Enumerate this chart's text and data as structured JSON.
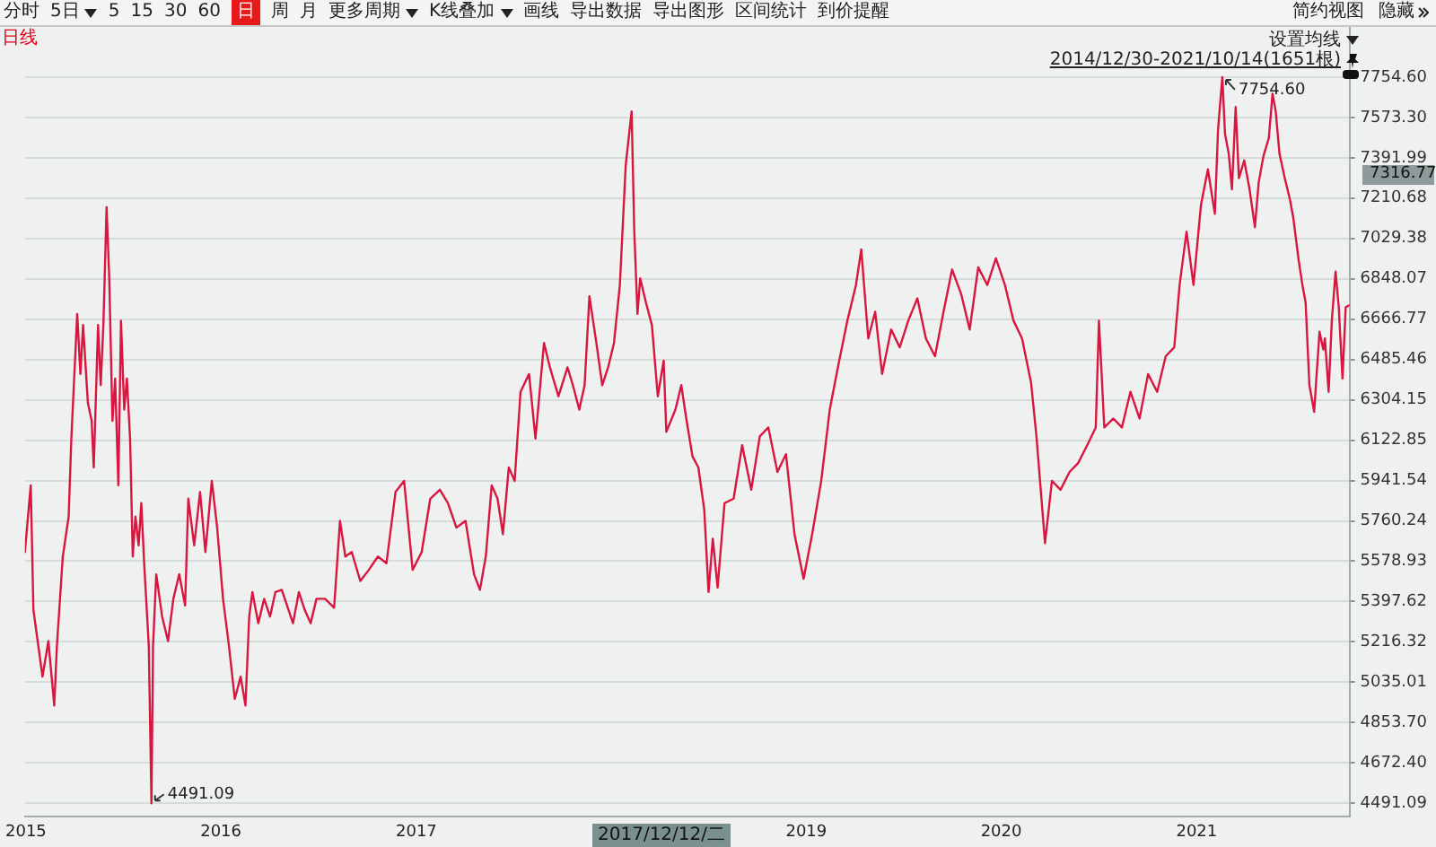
{
  "chart_data": {
    "type": "line",
    "title": "日线",
    "subtitle": "2014/12/30-2021/10/14(1651根)",
    "x": [
      "2014-12-30",
      "2015-01-10",
      "2015-01-15",
      "2015-02-01",
      "2015-02-12",
      "2015-02-23",
      "2015-02-28",
      "2015-03-11",
      "2015-03-22",
      "2015-03-27",
      "2015-04-07",
      "2015-04-13",
      "2015-04-18",
      "2015-04-27",
      "2015-05-04",
      "2015-05-08",
      "2015-05-16",
      "2015-05-21",
      "2015-05-26",
      "2015-06-01",
      "2015-06-06",
      "2015-06-12",
      "2015-06-17",
      "2015-06-23",
      "2015-06-28",
      "2015-07-04",
      "2015-07-09",
      "2015-07-15",
      "2015-07-20",
      "2015-07-25",
      "2015-07-31",
      "2015-08-05",
      "2015-08-11",
      "2015-08-19",
      "2015-08-24",
      "2015-08-27",
      "2015-09-02",
      "2015-09-13",
      "2015-09-24",
      "2015-10-04",
      "2015-10-15",
      "2015-10-26",
      "2015-11-01",
      "2015-11-12",
      "2015-11-23",
      "2015-12-03",
      "2015-12-15",
      "2015-12-25",
      "2016-01-05",
      "2016-01-16",
      "2016-01-27",
      "2016-02-07",
      "2016-02-16",
      "2016-02-23",
      "2016-02-29",
      "2016-03-11",
      "2016-03-22",
      "2016-04-02",
      "2016-04-12",
      "2016-04-24",
      "2016-05-15",
      "2016-05-26",
      "2016-06-06",
      "2016-06-17",
      "2016-06-28",
      "2016-07-14",
      "2016-07-31",
      "2016-08-11",
      "2016-08-21",
      "2016-09-02",
      "2016-09-18",
      "2016-10-04",
      "2016-10-21",
      "2016-11-06",
      "2016-11-23",
      "2016-12-09",
      "2016-12-25",
      "2017-01-11",
      "2017-01-27",
      "2017-02-14",
      "2017-03-01",
      "2017-03-17",
      "2017-04-03",
      "2017-04-19",
      "2017-04-30",
      "2017-05-11",
      "2017-05-22",
      "2017-06-02",
      "2017-06-12",
      "2017-06-23",
      "2017-07-04",
      "2017-07-15",
      "2017-07-31",
      "2017-08-12",
      "2017-08-28",
      "2017-09-08",
      "2017-09-24",
      "2017-10-11",
      "2017-10-21",
      "2017-11-02",
      "2017-11-12",
      "2017-11-21",
      "2017-12-04",
      "2017-12-15",
      "2017-12-26",
      "2018-01-06",
      "2018-01-17",
      "2018-01-28",
      "2018-02-08",
      "2018-02-13",
      "2018-02-19",
      "2018-02-24",
      "2018-03-07",
      "2018-03-18",
      "2018-03-29",
      "2018-04-09",
      "2018-04-14",
      "2018-05-01",
      "2018-05-12",
      "2018-05-22",
      "2018-06-02",
      "2018-06-13",
      "2018-06-24",
      "2018-07-02",
      "2018-07-10",
      "2018-07-19",
      "2018-08-01",
      "2018-08-18",
      "2018-09-03",
      "2018-09-20",
      "2018-10-06",
      "2018-10-22",
      "2018-11-08",
      "2018-11-24",
      "2018-12-10",
      "2018-12-27",
      "2019-01-12",
      "2019-01-29",
      "2019-02-14",
      "2019-03-02",
      "2019-03-19",
      "2019-04-04",
      "2019-04-14",
      "2019-04-27",
      "2019-05-10",
      "2019-05-23",
      "2019-06-09",
      "2019-06-25",
      "2019-07-11",
      "2019-07-28",
      "2019-08-13",
      "2019-08-30",
      "2019-09-15",
      "2019-10-01",
      "2019-10-18",
      "2019-11-03",
      "2019-11-19",
      "2019-12-06",
      "2019-12-22",
      "2020-01-08",
      "2020-01-24",
      "2020-02-09",
      "2020-02-26",
      "2020-03-07",
      "2020-03-23",
      "2020-04-05",
      "2020-04-21",
      "2020-05-08",
      "2020-05-24",
      "2020-06-10",
      "2020-06-26",
      "2020-07-02",
      "2020-07-12",
      "2020-07-29",
      "2020-08-14",
      "2020-08-30",
      "2020-09-16",
      "2020-10-02",
      "2020-10-19",
      "2020-11-04",
      "2020-11-20",
      "2020-11-30",
      "2020-12-13",
      "2020-12-26",
      "2021-01-09",
      "2021-01-22",
      "2021-02-04",
      "2021-02-10",
      "2021-02-18",
      "2021-02-23",
      "2021-03-02",
      "2021-03-08",
      "2021-03-15",
      "2021-03-21",
      "2021-03-31",
      "2021-04-10",
      "2021-04-20",
      "2021-04-27",
      "2021-05-06",
      "2021-05-16",
      "2021-05-23",
      "2021-05-29",
      "2021-06-05",
      "2021-06-15",
      "2021-06-25",
      "2021-07-01",
      "2021-07-11",
      "2021-07-18",
      "2021-07-24",
      "2021-07-27",
      "2021-07-31",
      "2021-08-09",
      "2021-08-13",
      "2021-08-19",
      "2021-08-26",
      "2021-08-29",
      "2021-09-05",
      "2021-09-11",
      "2021-09-18",
      "2021-09-24",
      "2021-10-01",
      "2021-10-07",
      "2021-10-14"
    ],
    "values": [
      5620,
      5920,
      5360,
      5060,
      5220,
      4930,
      5200,
      5600,
      5780,
      6130,
      6690,
      6420,
      6640,
      6290,
      6210,
      6000,
      6640,
      6370,
      6640,
      7170,
      6850,
      6210,
      6400,
      5920,
      6660,
      6260,
      6400,
      6130,
      5600,
      5780,
      5650,
      5840,
      5540,
      5200,
      4491.09,
      5200,
      5520,
      5330,
      5220,
      5410,
      5520,
      5380,
      5860,
      5650,
      5890,
      5620,
      5940,
      5730,
      5410,
      5200,
      4960,
      5060,
      4930,
      5330,
      5440,
      5300,
      5410,
      5330,
      5440,
      5450,
      5300,
      5440,
      5360,
      5300,
      5410,
      5410,
      5370,
      5760,
      5600,
      5620,
      5490,
      5540,
      5600,
      5570,
      5890,
      5940,
      5540,
      5620,
      5860,
      5900,
      5840,
      5730,
      5760,
      5520,
      5450,
      5600,
      5920,
      5860,
      5700,
      6000,
      5940,
      6340,
      6420,
      6130,
      6560,
      6450,
      6320,
      6450,
      6370,
      6260,
      6370,
      6770,
      6560,
      6370,
      6450,
      6560,
      6820,
      7360,
      7600,
      7060,
      6690,
      6850,
      6740,
      6640,
      6320,
      6480,
      6160,
      6260,
      6370,
      6210,
      6050,
      6000,
      5810,
      5440,
      5680,
      5460,
      5840,
      5860,
      6100,
      5900,
      6140,
      6180,
      5980,
      6060,
      5700,
      5500,
      5700,
      5940,
      6260,
      6460,
      6660,
      6820,
      6980,
      6580,
      6700,
      6420,
      6620,
      6540,
      6660,
      6760,
      6580,
      6500,
      6700,
      6890,
      6780,
      6620,
      6900,
      6820,
      6940,
      6820,
      6660,
      6580,
      6380,
      6140,
      5660,
      5940,
      5900,
      5980,
      6020,
      6100,
      6180,
      6660,
      6180,
      6220,
      6180,
      6340,
      6220,
      6420,
      6340,
      6500,
      6540,
      6820,
      7060,
      6820,
      7180,
      7340,
      7140,
      7520,
      7754.6,
      7500,
      7410,
      7250,
      7620,
      7300,
      7380,
      7250,
      7080,
      7280,
      7400,
      7480,
      7680,
      7600,
      7410,
      7300,
      7200,
      7120,
      6930,
      6820,
      6740,
      6580,
      6370,
      6250,
      6400,
      6610,
      6530,
      6580,
      6340,
      6660,
      6880,
      6720,
      6400,
      6720,
      6730
    ],
    "color": "#d9163f",
    "xlim": [
      "2014-12-30",
      "2021-10-14"
    ],
    "xticks": [
      {
        "value": "2015-01-01",
        "label": "2015"
      },
      {
        "value": "2016-01-01",
        "label": "2016"
      },
      {
        "value": "2017-01-01",
        "label": "2017"
      },
      {
        "value": "2019-01-01",
        "label": "2019"
      },
      {
        "value": "2020-01-01",
        "label": "2020"
      },
      {
        "value": "2021-01-01",
        "label": "2021"
      }
    ],
    "ylim": [
      4430,
      7980
    ],
    "yticks": [
      {
        "value": 4491.09,
        "label": "4491.09"
      },
      {
        "value": 4672.4,
        "label": "4672.40"
      },
      {
        "value": 4853.7,
        "label": "4853.70"
      },
      5035.01,
      5216.32,
      5397.62,
      5578.93,
      5760.24,
      5941.54,
      6122.85,
      6304.15,
      6485.46,
      6666.77,
      6848.07,
      7029.38,
      7210.68,
      7391.99,
      {
        "value": 7573.3,
        "label": "7573.30"
      },
      {
        "value": 7754.6,
        "label": "7754.60"
      }
    ],
    "grid": "y",
    "annotations": [
      "分时",
      "5日",
      "5",
      "15",
      "30",
      "60",
      "日",
      "周",
      "月",
      "更多周期",
      "K线叠加",
      "画线",
      "导出数据",
      "导出图形",
      "区间统计",
      "到价提醒",
      "简约视图",
      "隐藏",
      "设置均线",
      {
        "text": "7754.60",
        "x": "2021-02-18",
        "y": 7754.6
      },
      {
        "text": "4491.09",
        "x": "2015-08-24",
        "y": 4491.09
      },
      "2017/12/12/二",
      "7316.77"
    ]
  }
}
